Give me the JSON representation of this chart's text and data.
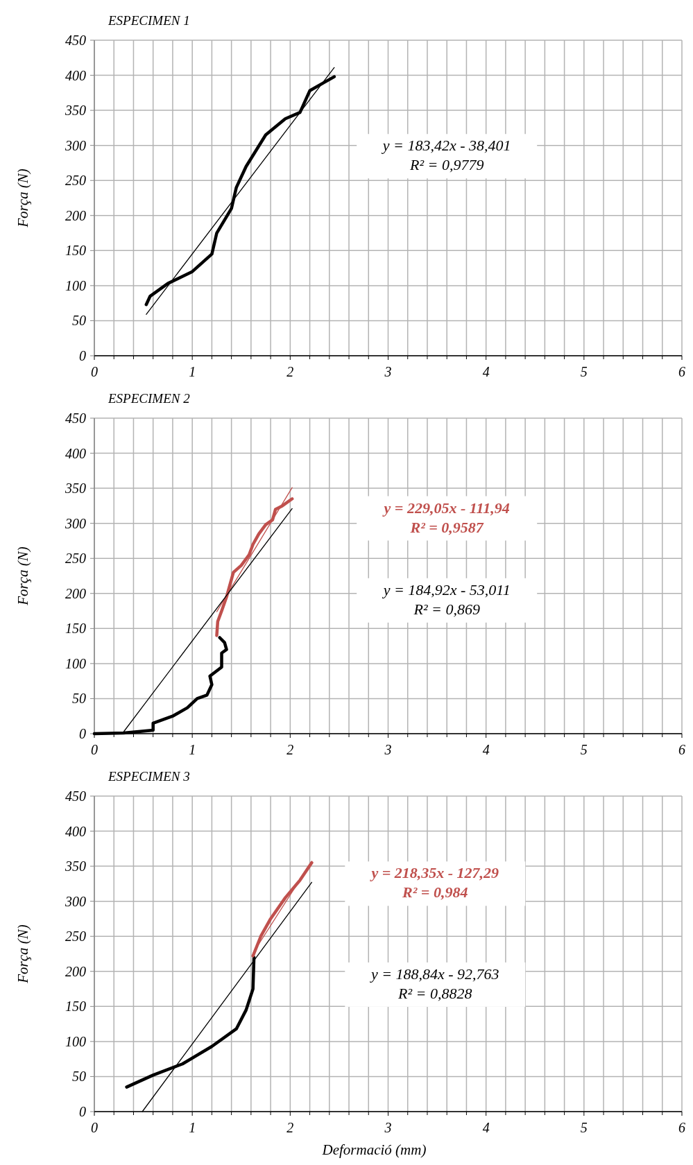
{
  "chart_data": [
    {
      "type": "line",
      "title": "ESPECIMEN 1",
      "ylabel": "Força (N)",
      "xlim": [
        0,
        6
      ],
      "xticks": [
        0,
        1,
        2,
        3,
        4,
        5,
        6
      ],
      "ylim": [
        0,
        450
      ],
      "yticks": [
        0,
        50,
        100,
        150,
        200,
        250,
        300,
        350,
        400,
        450
      ],
      "grid": true,
      "annotations": [
        "y = 183,42x - 38,401\nR² = 0,9779"
      ],
      "series": [
        {
          "color": "#000000",
          "x": [
            0.53,
            0.57,
            0.75,
            1.0,
            1.2,
            1.25,
            1.4,
            1.45,
            1.55,
            1.75,
            1.95,
            2.1,
            2.2,
            2.35,
            2.45
          ],
          "values": [
            73,
            85,
            103,
            120,
            145,
            175,
            210,
            240,
            270,
            315,
            338,
            347,
            378,
            390,
            398
          ]
        },
        {
          "color": "#000000",
          "x": [
            0.53,
            2.45
          ],
          "values": [
            59,
            411
          ]
        }
      ]
    },
    {
      "type": "line",
      "title": "ESPECIMEN 2",
      "ylabel": "Força (N)",
      "xlim": [
        0,
        6
      ],
      "xticks": [
        0,
        1,
        2,
        3,
        4,
        5,
        6
      ],
      "ylim": [
        0,
        450
      ],
      "yticks": [
        0,
        50,
        100,
        150,
        200,
        250,
        300,
        350,
        400,
        450
      ],
      "grid": true,
      "annotations": [
        "y = 229,05x - 111,94\nR² = 0,9587",
        "y = 184,92x - 53,011\nR² = 0,869"
      ],
      "series": [
        {
          "color": "#000000",
          "x": [
            0,
            0.3,
            0.6,
            0.6,
            0.8,
            0.95,
            1.05,
            1.15,
            1.2,
            1.18,
            1.3,
            1.3,
            1.35,
            1.33,
            1.28
          ],
          "values": [
            0,
            1,
            5,
            15,
            25,
            37,
            50,
            55,
            70,
            82,
            95,
            115,
            120,
            130,
            137
          ]
        },
        {
          "color": "#c0504d",
          "x": [
            1.25,
            1.26,
            1.3,
            1.35,
            1.37,
            1.42,
            1.5,
            1.58,
            1.62,
            1.68,
            1.75,
            1.82,
            1.85,
            1.92,
            2.02
          ],
          "values": [
            140,
            160,
            175,
            195,
            205,
            230,
            240,
            255,
            270,
            285,
            298,
            305,
            320,
            325,
            335
          ]
        },
        {
          "color": "#c0504d",
          "x": [
            1.25,
            2.02
          ],
          "values": [
            174,
            351
          ]
        },
        {
          "color": "#000000",
          "x": [
            0.29,
            2.02
          ],
          "values": [
            1,
            321
          ]
        }
      ]
    },
    {
      "type": "line",
      "title": "ESPECIMEN 3",
      "xlabel": "Deformació (mm)",
      "ylabel": "Força (N)",
      "xlim": [
        0,
        6
      ],
      "xticks": [
        0,
        1,
        2,
        3,
        4,
        5,
        6
      ],
      "ylim": [
        0,
        450
      ],
      "yticks": [
        0,
        50,
        100,
        150,
        200,
        250,
        300,
        350,
        400,
        450
      ],
      "grid": true,
      "annotations": [
        "y = 218,35x - 127,29\nR² = 0,984",
        "y = 188,84x - 92,763\nR² = 0,8828"
      ],
      "series": [
        {
          "color": "#000000",
          "x": [
            0.33,
            0.6,
            0.9,
            1.2,
            1.45,
            1.55,
            1.62,
            1.63
          ],
          "values": [
            35,
            52,
            68,
            93,
            118,
            145,
            175,
            220
          ]
        },
        {
          "color": "#c0504d",
          "x": [
            1.62,
            1.7,
            1.8,
            1.95,
            2.1,
            2.22
          ],
          "values": [
            222,
            250,
            275,
            305,
            330,
            355
          ]
        },
        {
          "color": "#c0504d",
          "x": [
            1.62,
            2.22
          ],
          "values": [
            226,
            357
          ]
        },
        {
          "color": "#000000",
          "x": [
            0.49,
            2.22
          ],
          "values": [
            0,
            327
          ]
        }
      ]
    }
  ]
}
